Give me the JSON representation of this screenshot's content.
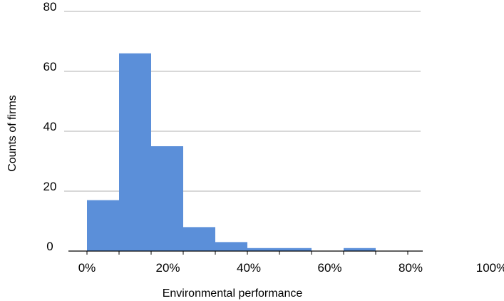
{
  "chart_data": {
    "type": "bar",
    "subtype": "histogram",
    "xlabel": "Environmental performance",
    "ylabel": "Counts of firms",
    "x_tick_labels": [
      "0%",
      "20%",
      "40%",
      "60%",
      "80%",
      "100%"
    ],
    "y_tick_labels": [
      "0",
      "20",
      "40",
      "60",
      "80"
    ],
    "ylim": [
      0,
      80
    ],
    "y_gridlines": true,
    "bins": [
      {
        "x0": 0,
        "x1": 0.1,
        "count": 17
      },
      {
        "x0": 0.1,
        "x1": 0.2,
        "count": 66
      },
      {
        "x0": 0.2,
        "x1": 0.3,
        "count": 35
      },
      {
        "x0": 0.3,
        "x1": 0.4,
        "count": 8
      },
      {
        "x0": 0.4,
        "x1": 0.5,
        "count": 3
      },
      {
        "x0": 0.5,
        "x1": 0.6,
        "count": 1
      },
      {
        "x0": 0.6,
        "x1": 0.7,
        "count": 1
      },
      {
        "x0": 0.7,
        "x1": 0.8,
        "count": 0
      },
      {
        "x0": 0.8,
        "x1": 0.9,
        "count": 1
      }
    ],
    "bar_color": "#5b8fd9",
    "grid_color": "#c0c0c0",
    "axis_color": "#000000"
  }
}
